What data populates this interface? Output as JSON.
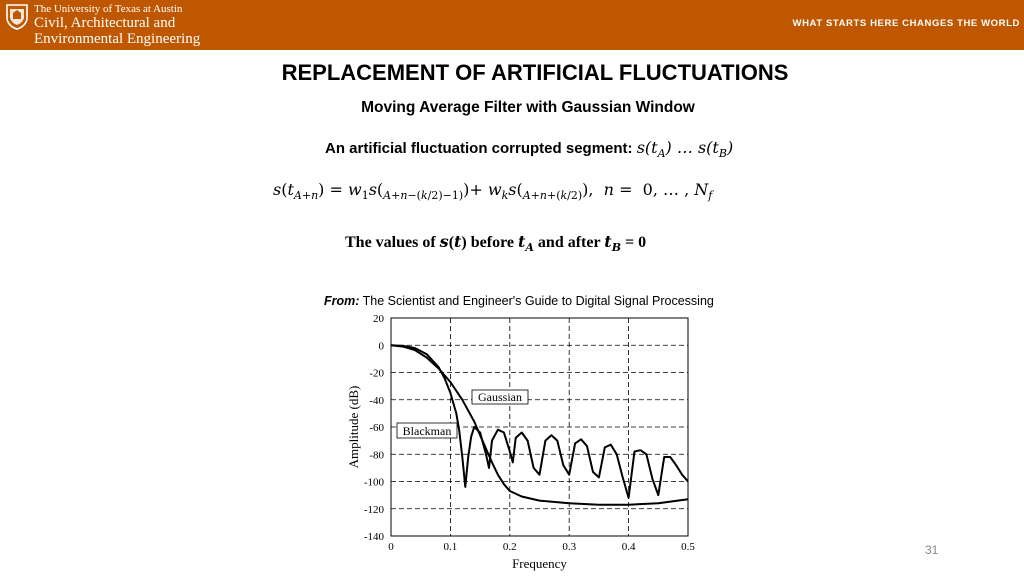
{
  "header": {
    "university": "The University of Texas at Austin",
    "department_line1": "Civil, Architectural and",
    "department_line2": "Environmental Engineering",
    "tagline": "WHAT STARTS HERE CHANGES THE WORLD",
    "seal_icon": "ut-seal-icon",
    "brand_color": "#bf5700"
  },
  "slide": {
    "title": "REPLACEMENT OF ARTIFICIAL FLUCTUATIONS",
    "subtitle": "Moving Average Filter with Gaussian Window",
    "segment_label": "An artificial fluctuation corrupted segment:",
    "segment_math": "s(t_A) … s(t_B)",
    "equation": "s(t_{A+n}) = w_1 s(_{A+n−(k/2)−1}) + w_k s(_{A+n+(k/2)}),  n = 0, … , N_f",
    "values_note": "The values of s(t) before t_A and after t_B = 0",
    "source_prefix": "From:",
    "source_text": "The Scientist and Engineer's Guide to Digital Signal Processing",
    "page_number": "31"
  },
  "chart_data": {
    "type": "line",
    "xlabel": "Frequency",
    "ylabel": "Amplitude (dB)",
    "xlim": [
      0,
      0.5
    ],
    "ylim": [
      -140,
      20
    ],
    "x_ticks": [
      "0",
      "0.1",
      "0.2",
      "0.3",
      "0.4",
      "0.5"
    ],
    "y_ticks": [
      "20",
      "0",
      "-20",
      "-40",
      "-60",
      "-80",
      "-100",
      "-120",
      "-140"
    ],
    "grid": true,
    "annotations": [
      "Gaussian",
      "Blackman"
    ],
    "series": [
      {
        "name": "Gaussian",
        "x": [
          0,
          0.02,
          0.04,
          0.06,
          0.08,
          0.1,
          0.12,
          0.14,
          0.15,
          0.16,
          0.17,
          0.18,
          0.19,
          0.2,
          0.22,
          0.25,
          0.3,
          0.35,
          0.4,
          0.45,
          0.5
        ],
        "y": [
          0,
          -1,
          -3.5,
          -9,
          -17,
          -27,
          -40,
          -56,
          -66,
          -76,
          -86,
          -95,
          -102,
          -107,
          -111,
          -114,
          -116,
          -117,
          -117,
          -116,
          -113
        ]
      },
      {
        "name": "Blackman",
        "x": [
          0,
          0.02,
          0.04,
          0.06,
          0.08,
          0.09,
          0.1,
          0.11,
          0.115,
          0.12,
          0.125,
          0.13,
          0.135,
          0.14,
          0.15,
          0.16,
          0.165,
          0.17,
          0.18,
          0.19,
          0.2,
          0.205,
          0.21,
          0.22,
          0.23,
          0.24,
          0.25,
          0.26,
          0.27,
          0.28,
          0.29,
          0.3,
          0.31,
          0.32,
          0.33,
          0.34,
          0.35,
          0.36,
          0.37,
          0.38,
          0.39,
          0.4,
          0.41,
          0.42,
          0.43,
          0.44,
          0.45,
          0.46,
          0.47,
          0.48,
          0.49,
          0.5
        ],
        "y": [
          0,
          -0.5,
          -2,
          -6.5,
          -16,
          -24,
          -35,
          -50,
          -63,
          -82,
          -104,
          -82,
          -67,
          -60,
          -64,
          -80,
          -90,
          -70,
          -62,
          -64,
          -78,
          -86,
          -68,
          -64,
          -70,
          -90,
          -95,
          -70,
          -66,
          -70,
          -88,
          -95,
          -72,
          -69,
          -74,
          -93,
          -97,
          -75,
          -73,
          -80,
          -97,
          -112,
          -78,
          -77,
          -80,
          -98,
          -110,
          -82,
          -82,
          -88,
          -95,
          -100
        ]
      }
    ]
  }
}
